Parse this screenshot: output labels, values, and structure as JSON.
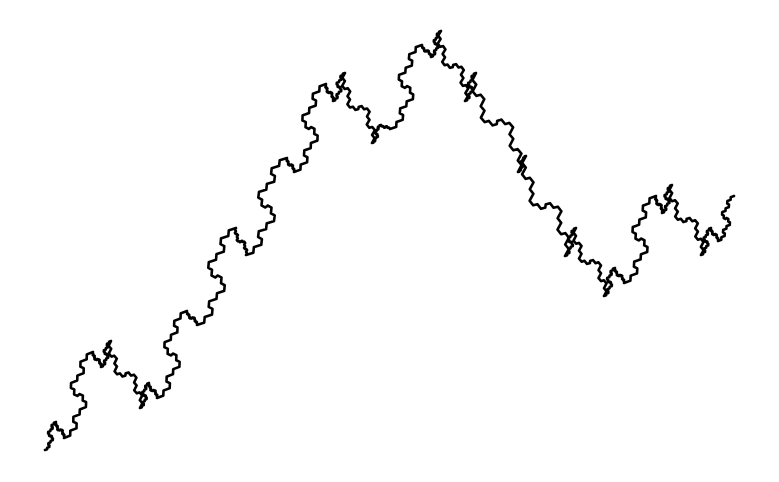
{
  "figure": {
    "kind": "fractal-curve",
    "background_color": "#ffffff",
    "line_color": "#000000"
  }
}
